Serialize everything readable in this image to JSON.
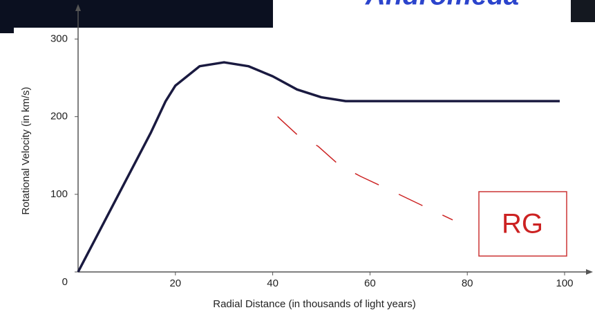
{
  "chart_data": {
    "type": "line",
    "title": "Andromeda",
    "x_label": "Radial Distance (in thousands of light years)",
    "y_label": "Rotational Velocity (in km/s)",
    "xlim": [
      0,
      105
    ],
    "ylim": [
      0,
      330
    ],
    "xticks": [
      20,
      40,
      60,
      80,
      100
    ],
    "yticks": [
      0,
      100,
      200,
      300
    ],
    "series": [
      {
        "color": "#1a1a40",
        "style": "solid",
        "x": [
          0,
          5,
          10,
          15,
          18,
          20,
          25,
          30,
          35,
          40,
          45,
          50,
          55,
          60,
          70,
          80,
          90,
          99
        ],
        "values": [
          0,
          60,
          120,
          180,
          220,
          240,
          265,
          270,
          265,
          252,
          235,
          225,
          220,
          220,
          220,
          220,
          220,
          220
        ]
      },
      {
        "name": "RG",
        "color": "#cc2222",
        "style": "dashed",
        "x": [
          41,
          45,
          49.3,
          53.6,
          58.1,
          64.6,
          70.6,
          77
        ],
        "values": [
          200,
          177,
          162,
          138,
          123,
          104,
          86,
          67
        ]
      }
    ]
  }
}
